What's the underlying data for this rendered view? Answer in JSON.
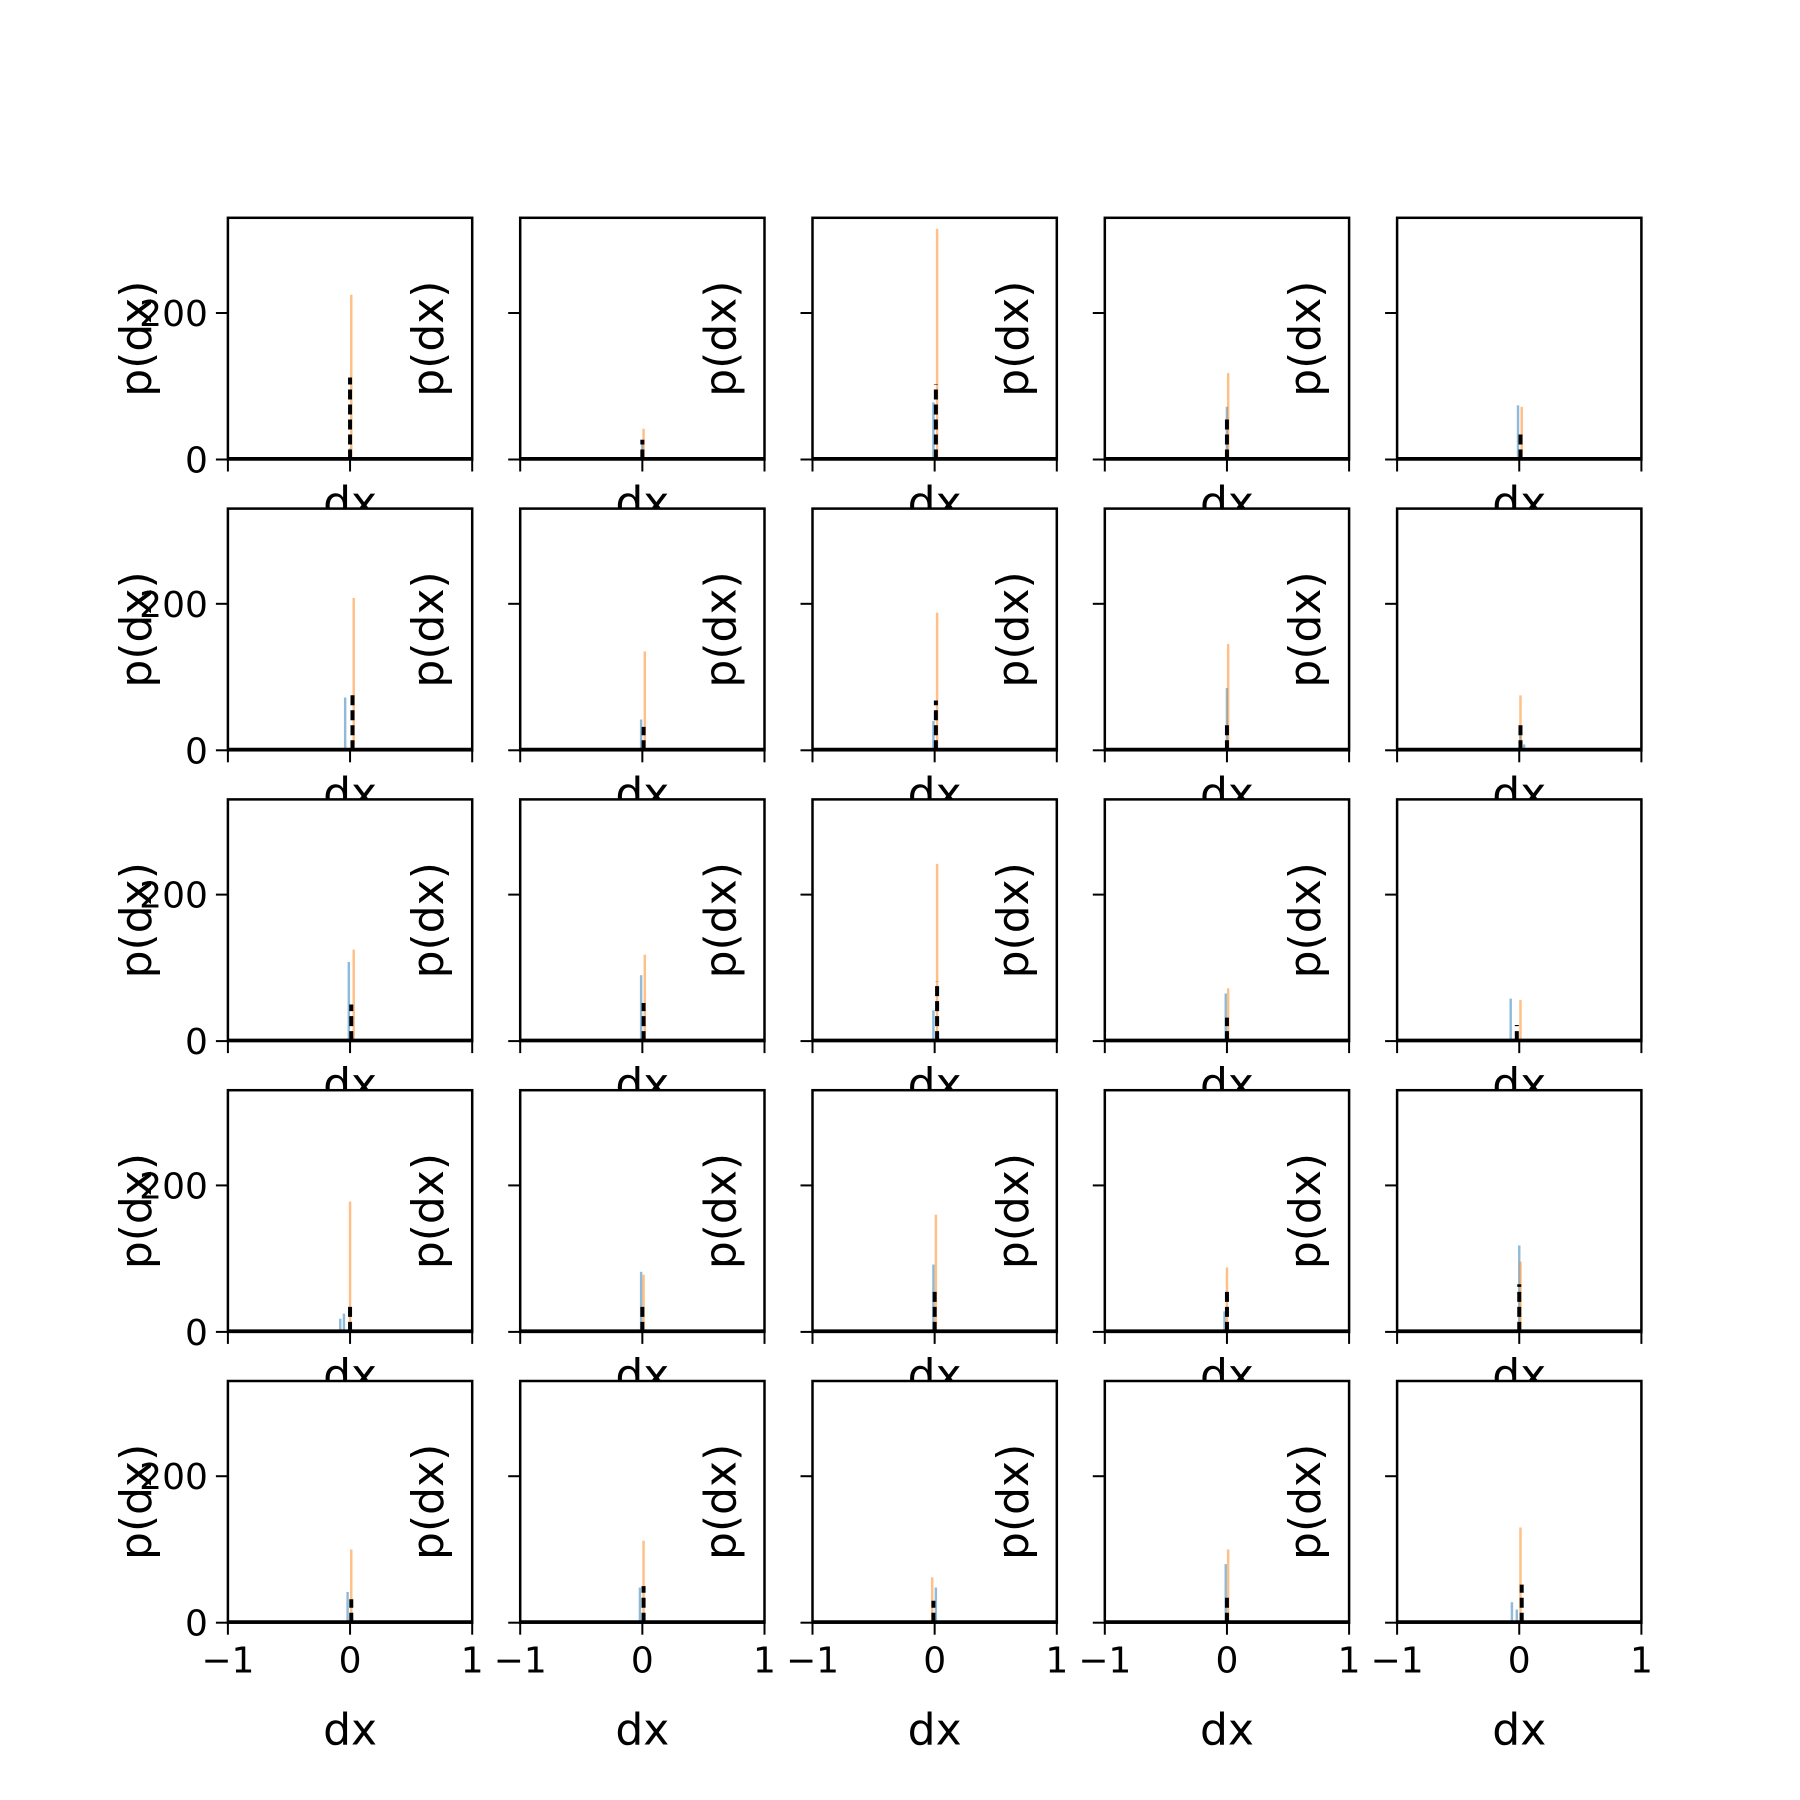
{
  "figure": {
    "rows": 5,
    "cols": 5,
    "colors": {
      "blue": "#1f77b4",
      "orange": "#ff7f0e",
      "dashed": "#000000",
      "axes": "#000000",
      "background": "#ffffff"
    }
  },
  "chart_data": {
    "type": "histogram-grid",
    "xlabel": "dx",
    "ylabel": "p(dx)",
    "xlim": [
      -1,
      1
    ],
    "ylim": [
      0,
      330
    ],
    "xticks": [
      -1,
      0,
      1
    ],
    "xtick_labels": [
      "−1",
      "0",
      "1"
    ],
    "yticks": [
      0,
      200
    ],
    "ytick_labels": [
      "0",
      "200"
    ],
    "subplots": [
      {
        "row": 0,
        "col": 0,
        "blue": [
          {
            "x": 0.0,
            "h": 15
          }
        ],
        "orange": [
          {
            "x": 0.01,
            "h": 225
          }
        ],
        "dashed": [
          {
            "x": 0.0,
            "h": 112
          }
        ]
      },
      {
        "row": 0,
        "col": 1,
        "blue": [
          {
            "x": 0.0,
            "h": 22
          }
        ],
        "orange": [
          {
            "x": 0.01,
            "h": 42
          }
        ],
        "dashed": [
          {
            "x": 0.0,
            "h": 27
          }
        ]
      },
      {
        "row": 0,
        "col": 2,
        "blue": [
          {
            "x": -0.01,
            "h": 78
          }
        ],
        "orange": [
          {
            "x": 0.02,
            "h": 315
          }
        ],
        "dashed": [
          {
            "x": 0.01,
            "h": 103
          }
        ]
      },
      {
        "row": 0,
        "col": 3,
        "blue": [
          {
            "x": 0.0,
            "h": 72
          }
        ],
        "orange": [
          {
            "x": 0.01,
            "h": 118
          }
        ],
        "dashed": [
          {
            "x": 0.0,
            "h": 55
          }
        ]
      },
      {
        "row": 0,
        "col": 4,
        "blue": [
          {
            "x": -0.01,
            "h": 74
          }
        ],
        "orange": [
          {
            "x": 0.02,
            "h": 72
          }
        ],
        "dashed": [
          {
            "x": 0.01,
            "h": 38
          }
        ]
      },
      {
        "row": 1,
        "col": 0,
        "blue": [
          {
            "x": -0.04,
            "h": 72
          }
        ],
        "orange": [
          {
            "x": 0.03,
            "h": 208
          }
        ],
        "dashed": [
          {
            "x": 0.02,
            "h": 78
          }
        ]
      },
      {
        "row": 1,
        "col": 1,
        "blue": [
          {
            "x": -0.01,
            "h": 42
          }
        ],
        "orange": [
          {
            "x": 0.02,
            "h": 135
          }
        ],
        "dashed": [
          {
            "x": 0.01,
            "h": 32
          }
        ]
      },
      {
        "row": 1,
        "col": 2,
        "blue": [
          {
            "x": -0.01,
            "h": 40
          }
        ],
        "orange": [
          {
            "x": 0.02,
            "h": 188
          }
        ],
        "dashed": [
          {
            "x": 0.01,
            "h": 68
          }
        ]
      },
      {
        "row": 1,
        "col": 3,
        "blue": [
          {
            "x": 0.0,
            "h": 85
          }
        ],
        "orange": [
          {
            "x": 0.01,
            "h": 145
          }
        ],
        "dashed": [
          {
            "x": 0.0,
            "h": 40
          }
        ]
      },
      {
        "row": 1,
        "col": 4,
        "blue": [
          {
            "x": 0.01,
            "h": 22
          },
          {
            "x": 0.04,
            "h": 8
          }
        ],
        "orange": [
          {
            "x": 0.01,
            "h": 75
          }
        ],
        "dashed": [
          {
            "x": 0.01,
            "h": 38
          }
        ]
      },
      {
        "row": 2,
        "col": 0,
        "blue": [
          {
            "x": -0.01,
            "h": 108
          }
        ],
        "orange": [
          {
            "x": 0.03,
            "h": 125
          }
        ],
        "dashed": [
          {
            "x": 0.01,
            "h": 50
          }
        ]
      },
      {
        "row": 2,
        "col": 1,
        "blue": [
          {
            "x": -0.01,
            "h": 90
          }
        ],
        "orange": [
          {
            "x": 0.02,
            "h": 118
          }
        ],
        "dashed": [
          {
            "x": 0.01,
            "h": 52
          }
        ]
      },
      {
        "row": 2,
        "col": 2,
        "blue": [
          {
            "x": -0.01,
            "h": 42
          }
        ],
        "orange": [
          {
            "x": 0.02,
            "h": 242
          }
        ],
        "dashed": [
          {
            "x": 0.02,
            "h": 82
          }
        ]
      },
      {
        "row": 2,
        "col": 3,
        "blue": [
          {
            "x": -0.01,
            "h": 65
          }
        ],
        "orange": [
          {
            "x": 0.01,
            "h": 72
          }
        ],
        "dashed": [
          {
            "x": 0.0,
            "h": 32
          }
        ]
      },
      {
        "row": 2,
        "col": 4,
        "blue": [
          {
            "x": -0.07,
            "h": 58
          }
        ],
        "orange": [
          {
            "x": 0.01,
            "h": 56
          }
        ],
        "dashed": [
          {
            "x": -0.02,
            "h": 22
          }
        ]
      },
      {
        "row": 3,
        "col": 0,
        "blue": [
          {
            "x": -0.08,
            "h": 18
          },
          {
            "x": -0.05,
            "h": 25
          }
        ],
        "orange": [
          {
            "x": 0.0,
            "h": 178
          }
        ],
        "dashed": [
          {
            "x": 0.0,
            "h": 36
          }
        ]
      },
      {
        "row": 3,
        "col": 1,
        "blue": [
          {
            "x": -0.01,
            "h": 82
          }
        ],
        "orange": [
          {
            "x": 0.01,
            "h": 78
          }
        ],
        "dashed": [
          {
            "x": 0.0,
            "h": 35
          }
        ]
      },
      {
        "row": 3,
        "col": 2,
        "blue": [
          {
            "x": -0.01,
            "h": 92
          }
        ],
        "orange": [
          {
            "x": 0.01,
            "h": 160
          }
        ],
        "dashed": [
          {
            "x": 0.0,
            "h": 60
          }
        ]
      },
      {
        "row": 3,
        "col": 3,
        "blue": [
          {
            "x": -0.02,
            "h": 28
          }
        ],
        "orange": [
          {
            "x": 0.0,
            "h": 88
          }
        ],
        "dashed": [
          {
            "x": 0.0,
            "h": 58
          }
        ]
      },
      {
        "row": 3,
        "col": 4,
        "blue": [
          {
            "x": 0.0,
            "h": 118
          }
        ],
        "orange": [
          {
            "x": 0.01,
            "h": 96
          }
        ],
        "dashed": [
          {
            "x": 0.0,
            "h": 65
          }
        ]
      },
      {
        "row": 4,
        "col": 0,
        "blue": [
          {
            "x": -0.02,
            "h": 42
          }
        ],
        "orange": [
          {
            "x": 0.01,
            "h": 100
          }
        ],
        "dashed": [
          {
            "x": 0.01,
            "h": 32
          }
        ]
      },
      {
        "row": 4,
        "col": 1,
        "blue": [
          {
            "x": -0.02,
            "h": 48
          }
        ],
        "orange": [
          {
            "x": 0.01,
            "h": 112
          }
        ],
        "dashed": [
          {
            "x": 0.01,
            "h": 50
          }
        ]
      },
      {
        "row": 4,
        "col": 2,
        "blue": [
          {
            "x": 0.01,
            "h": 48
          }
        ],
        "orange": [
          {
            "x": -0.02,
            "h": 62
          }
        ],
        "dashed": [
          {
            "x": -0.01,
            "h": 30
          }
        ]
      },
      {
        "row": 4,
        "col": 3,
        "blue": [
          {
            "x": -0.01,
            "h": 80
          }
        ],
        "orange": [
          {
            "x": 0.01,
            "h": 100
          }
        ],
        "dashed": [
          {
            "x": 0.0,
            "h": 40
          }
        ]
      },
      {
        "row": 4,
        "col": 4,
        "blue": [
          {
            "x": -0.06,
            "h": 28
          },
          {
            "x": -0.02,
            "h": 18
          }
        ],
        "orange": [
          {
            "x": 0.01,
            "h": 130
          }
        ],
        "dashed": [
          {
            "x": 0.02,
            "h": 52
          }
        ]
      }
    ]
  }
}
